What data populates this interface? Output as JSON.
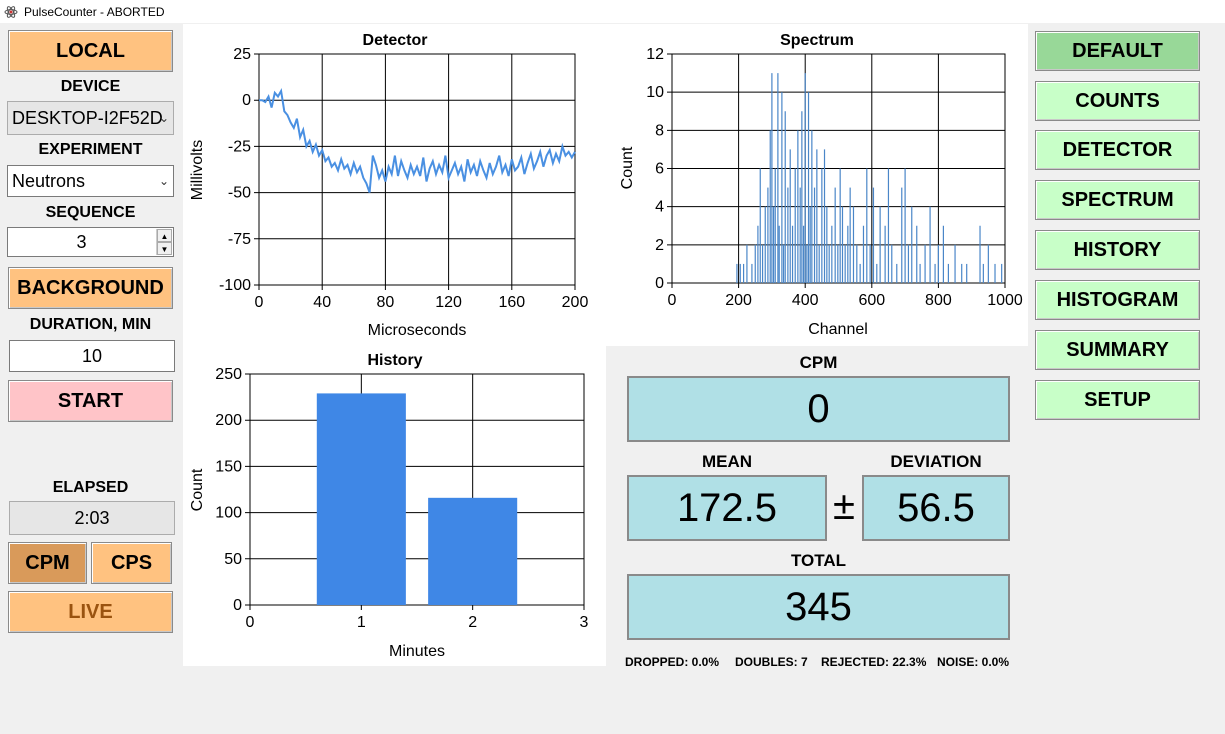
{
  "window": {
    "title": "PulseCounter - ABORTED"
  },
  "left": {
    "local_button": "LOCAL",
    "device_label": "DEVICE",
    "device_value": "DESKTOP-I2F52D",
    "experiment_label": "EXPERIMENT",
    "experiment_value": "Neutrons",
    "sequence_label": "SEQUENCE",
    "sequence_value": "3",
    "background_button": "BACKGROUND",
    "duration_label": "DURATION, MIN",
    "duration_value": "10",
    "start_button": "START",
    "elapsed_label": "ELAPSED",
    "elapsed_value": "2:03",
    "cpm_button": "CPM",
    "cps_button": "CPS",
    "live_button": "LIVE"
  },
  "right_menu": [
    "DEFAULT",
    "COUNTS",
    "DETECTOR",
    "SPECTRUM",
    "HISTORY",
    "HISTOGRAM",
    "SUMMARY",
    "SETUP"
  ],
  "stats": {
    "cpm_label": "CPM",
    "cpm_value": "0",
    "mean_label": "MEAN",
    "mean_value": "172.5",
    "plusminus": "±",
    "deviation_label": "DEVIATION",
    "deviation_value": "56.5",
    "total_label": "TOTAL",
    "total_value": "345",
    "dropped": "DROPPED: 0.0%",
    "doubles": "DOUBLES: 7",
    "rejected": "REJECTED: 22.3%",
    "noise": "NOISE: 0.0%"
  },
  "colors": {
    "series": "#4a90e2",
    "bar": "#3f87e6",
    "spectrum_line": "#4a86c8"
  },
  "chart_data": [
    {
      "id": "detector",
      "type": "line",
      "title": "Detector",
      "xlabel": "Microseconds",
      "ylabel": "Millivolts",
      "xlim": [
        0,
        200
      ],
      "ylim": [
        -100,
        25
      ],
      "xticks": [
        0,
        40,
        80,
        120,
        160,
        200
      ],
      "yticks": [
        25,
        0,
        -25,
        -50,
        -75,
        -100
      ],
      "x": [
        0,
        2,
        4,
        6,
        8,
        10,
        12,
        14,
        16,
        18,
        20,
        22,
        24,
        26,
        28,
        30,
        32,
        34,
        36,
        38,
        40,
        42,
        44,
        46,
        48,
        50,
        52,
        54,
        56,
        58,
        60,
        62,
        64,
        66,
        68,
        70,
        72,
        74,
        76,
        78,
        80,
        82,
        84,
        86,
        88,
        90,
        92,
        94,
        96,
        98,
        100,
        102,
        104,
        106,
        108,
        110,
        112,
        114,
        116,
        118,
        120,
        122,
        124,
        126,
        128,
        130,
        132,
        134,
        136,
        138,
        140,
        142,
        144,
        146,
        148,
        150,
        152,
        154,
        156,
        158,
        160,
        162,
        164,
        166,
        168,
        170,
        172,
        174,
        176,
        178,
        180,
        182,
        184,
        186,
        188,
        190,
        192,
        194,
        196,
        198,
        200
      ],
      "y": [
        0,
        0,
        -1,
        2,
        -4,
        4,
        2,
        5,
        -6,
        -8,
        -12,
        -15,
        -10,
        -20,
        -16,
        -25,
        -22,
        -28,
        -24,
        -30,
        -27,
        -33,
        -31,
        -36,
        -34,
        -38,
        -32,
        -37,
        -35,
        -40,
        -34,
        -39,
        -36,
        -42,
        -45,
        -50,
        -30,
        -35,
        -42,
        -38,
        -44,
        -36,
        -40,
        -30,
        -41,
        -33,
        -38,
        -42,
        -35,
        -40,
        -36,
        -41,
        -31,
        -44,
        -37,
        -33,
        -40,
        -35,
        -39,
        -30,
        -42,
        -38,
        -34,
        -40,
        -36,
        -44,
        -32,
        -39,
        -35,
        -41,
        -33,
        -38,
        -42,
        -34,
        -40,
        -36,
        -30,
        -39,
        -35,
        -41,
        -32,
        -38,
        -36,
        -31,
        -40,
        -34,
        -29,
        -37,
        -33,
        -28,
        -36,
        -30,
        -27,
        -34,
        -29,
        -33,
        -25,
        -30,
        -28,
        -31,
        -28
      ]
    },
    {
      "id": "spectrum",
      "type": "bar",
      "title": "Spectrum",
      "xlabel": "Channel",
      "ylabel": "Count",
      "xlim": [
        0,
        1000
      ],
      "ylim": [
        0,
        12
      ],
      "xticks": [
        0,
        200,
        400,
        600,
        800,
        1000
      ],
      "yticks": [
        0,
        2,
        4,
        6,
        8,
        10,
        12
      ],
      "x": [
        195,
        205,
        215,
        225,
        240,
        250,
        258,
        265,
        272,
        280,
        288,
        295,
        300,
        305,
        310,
        318,
        322,
        330,
        335,
        340,
        348,
        355,
        362,
        370,
        378,
        385,
        390,
        395,
        400,
        405,
        410,
        415,
        420,
        428,
        435,
        442,
        450,
        458,
        465,
        472,
        480,
        490,
        498,
        505,
        512,
        520,
        528,
        535,
        545,
        555,
        565,
        575,
        585,
        595,
        605,
        615,
        625,
        640,
        650,
        660,
        675,
        690,
        700,
        710,
        720,
        735,
        745,
        760,
        775,
        790,
        800,
        815,
        830,
        850,
        870,
        885,
        925,
        935,
        950,
        970,
        990
      ],
      "values": [
        1,
        1,
        1,
        2,
        1,
        2,
        3,
        6,
        2,
        4,
        5,
        8,
        11,
        4,
        6,
        11,
        3,
        10,
        2,
        9,
        5,
        7,
        3,
        6,
        8,
        5,
        9,
        3,
        11,
        2,
        10,
        4,
        8,
        5,
        7,
        2,
        6,
        7,
        4,
        2,
        3,
        5,
        2,
        6,
        4,
        2,
        3,
        5,
        4,
        2,
        1,
        3,
        6,
        2,
        5,
        1,
        4,
        3,
        6,
        2,
        1,
        5,
        6,
        2,
        4,
        3,
        1,
        2,
        4,
        1,
        2,
        3,
        1,
        2,
        1,
        1,
        3,
        1,
        2,
        1,
        1
      ]
    },
    {
      "id": "history",
      "type": "bar",
      "title": "History",
      "xlabel": "Minutes",
      "ylabel": "Count",
      "xlim": [
        0,
        3
      ],
      "ylim": [
        0,
        250
      ],
      "xticks": [
        0,
        1,
        2,
        3
      ],
      "yticks": [
        0,
        50,
        100,
        150,
        200,
        250
      ],
      "categories": [
        1,
        2
      ],
      "values": [
        229,
        116
      ]
    }
  ]
}
